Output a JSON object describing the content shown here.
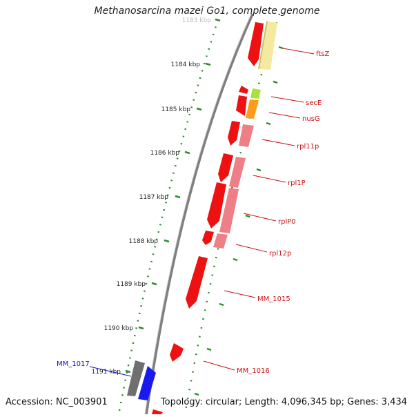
{
  "title": "Methanosarcina mazei Go1, complete genome",
  "accession": "Accession: NC_003901",
  "topology": "Topology: circular; Length: 4,096,345 bp; Genes: 3,434",
  "colors": {
    "backbone": "#7f7f7f",
    "tick": "#2b8a2b",
    "label_red": "#cc1111",
    "label_blue": "#1111bb",
    "gene_red": "#ee1111",
    "gene_pink": "#ee7f86",
    "gene_yellow": "#f3eaa0",
    "gene_green": "#a8e23a",
    "gene_orange": "#ff9a1a",
    "gene_gray": "#6f6f6f",
    "gene_blue": "#1a1aee"
  },
  "ticks": [
    {
      "label": "1183 kbp",
      "faded": true
    },
    {
      "label": "1184 kbp"
    },
    {
      "label": "1185 kbp"
    },
    {
      "label": "1186 kbp"
    },
    {
      "label": "1187 kbp"
    },
    {
      "label": "1188 kbp"
    },
    {
      "label": "1189 kbp"
    },
    {
      "label": "1190 kbp"
    },
    {
      "label": "1191 kbp"
    }
  ],
  "gene_labels": [
    "ftsZ",
    "secE",
    "nusG",
    "rpl11p",
    "rpl1P",
    "rplP0",
    "rpl12p",
    "MM_1015",
    "MM_1016",
    "MM_1017"
  ]
}
